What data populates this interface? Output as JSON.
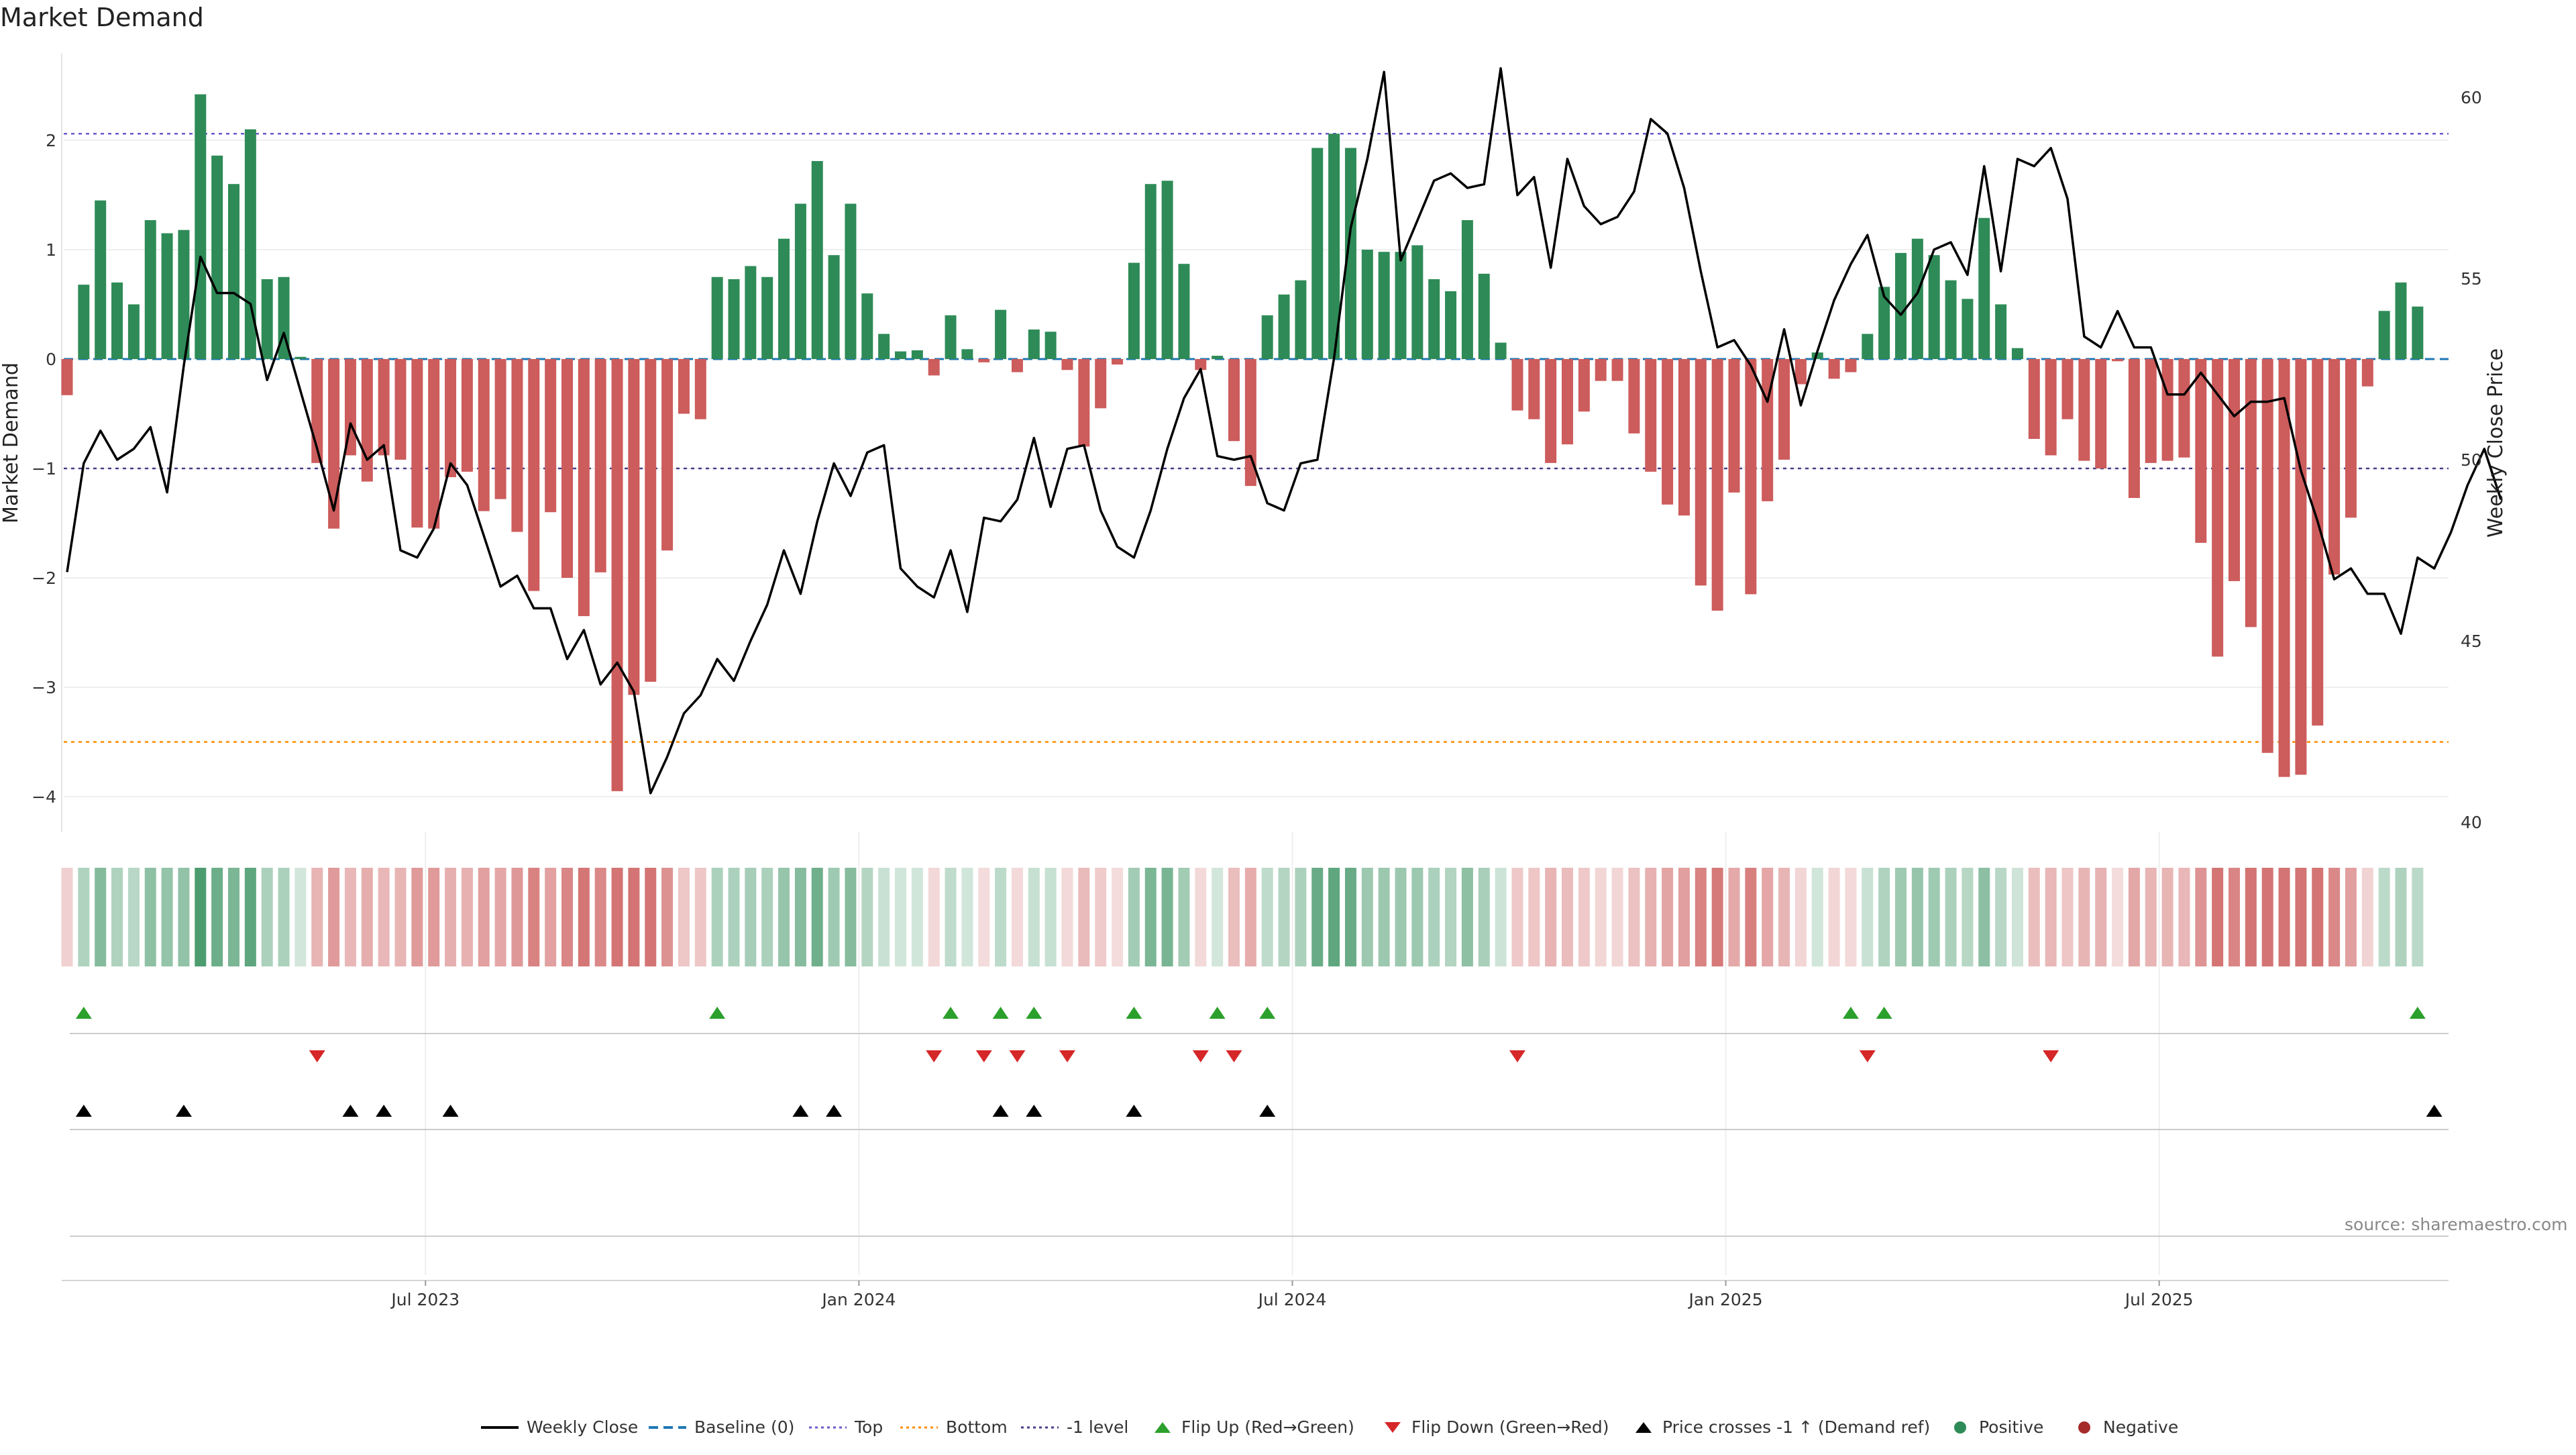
{
  "title": "Market Demand",
  "source": "source: sharemaestro.com",
  "colors": {
    "positive": "#2e8b57",
    "negative": "#cd5c5c",
    "price": "#000000",
    "baseline": "#1f77b4",
    "top": "#6a5acd",
    "bottom": "#ff8c00",
    "minus1": "#483d8b",
    "flip_up": "#2ca02c",
    "flip_down": "#d62728",
    "cross": "#000000"
  },
  "chart_data": {
    "type": "bar",
    "title": "Market Demand",
    "ylabel_left": "Market Demand",
    "ylabel_right": "Weekly Close Price",
    "ylim_left": [
      -4.2,
      2.8
    ],
    "yticks_left": [
      "−4",
      "−3",
      "−2",
      "−1",
      "0",
      "1",
      "2"
    ],
    "ylim_right": [
      39.5,
      61.5
    ],
    "yticks_right": [
      "40",
      "45",
      "50",
      "55",
      "60"
    ],
    "xticks": [
      "Jul 2023",
      "Jan 2024",
      "Jul 2024",
      "Jan 2025",
      "Jul 2025"
    ],
    "xtick_weeks": [
      21.5,
      47.5,
      73.5,
      99.5,
      125.5
    ],
    "levels": {
      "top": 2.06,
      "bottom": -3.5,
      "minus1": -1.0,
      "baseline": 0
    },
    "weeks": 144,
    "demand": [
      -0.33,
      0.68,
      1.45,
      0.7,
      0.5,
      1.27,
      1.15,
      1.18,
      2.42,
      1.86,
      1.6,
      2.1,
      0.73,
      0.75,
      0.02,
      -0.95,
      -1.55,
      -0.88,
      -1.12,
      -0.88,
      -0.92,
      -1.54,
      -1.55,
      -1.08,
      -1.03,
      -1.39,
      -1.28,
      -1.58,
      -2.12,
      -1.4,
      -2.0,
      -2.35,
      -1.95,
      -3.95,
      -3.07,
      -2.95,
      -1.75,
      -0.5,
      -0.55,
      0.75,
      0.73,
      0.85,
      0.75,
      1.1,
      1.42,
      1.81,
      0.95,
      1.42,
      0.6,
      0.23,
      0.07,
      0.08,
      -0.15,
      0.4,
      0.09,
      -0.03,
      0.45,
      -0.12,
      0.27,
      0.25,
      -0.1,
      -0.8,
      -0.45,
      -0.05,
      0.88,
      1.6,
      1.63,
      0.87,
      -0.1,
      0.03,
      -0.75,
      -1.16,
      0.4,
      0.59,
      0.72,
      1.93,
      2.06,
      1.93,
      1.0,
      0.98,
      0.98,
      1.04,
      0.73,
      0.62,
      1.27,
      0.78,
      0.15,
      -0.47,
      -0.55,
      -0.95,
      -0.78,
      -0.48,
      -0.2,
      -0.2,
      -0.68,
      -1.03,
      -1.33,
      -1.43,
      -2.07,
      -2.3,
      -1.22,
      -2.15,
      -1.3,
      -0.92,
      -0.23,
      0.06,
      -0.18,
      -0.12,
      0.23,
      0.66,
      0.97,
      1.1,
      0.95,
      0.72,
      0.55,
      1.29,
      0.5,
      0.1,
      -0.73,
      -0.88,
      -0.55,
      -0.93,
      -1.0,
      -0.02,
      -1.27,
      -0.95,
      -0.93,
      -0.9,
      -1.68,
      -2.72,
      -2.03,
      -2.45,
      -3.6,
      -3.82,
      -3.8,
      -3.35,
      -1.97,
      -1.45,
      -0.25,
      0.44,
      0.7,
      0.48
    ],
    "price": [
      46.9,
      49.9,
      50.8,
      50.0,
      50.3,
      50.9,
      49.1,
      52.6,
      55.6,
      54.6,
      54.6,
      54.3,
      52.2,
      53.5,
      51.9,
      50.3,
      48.6,
      51.0,
      50.0,
      50.4,
      47.5,
      47.3,
      48.1,
      49.9,
      49.3,
      47.9,
      46.5,
      46.8,
      45.9,
      45.9,
      44.5,
      45.3,
      43.8,
      44.4,
      43.6,
      40.8,
      41.8,
      43.0,
      43.5,
      44.5,
      43.9,
      45.0,
      46.0,
      47.5,
      46.3,
      48.3,
      49.9,
      49.0,
      50.2,
      50.4,
      47.0,
      46.5,
      46.2,
      47.5,
      45.8,
      48.4,
      48.3,
      48.9,
      50.6,
      48.7,
      50.3,
      50.4,
      48.6,
      47.6,
      47.3,
      48.6,
      50.3,
      51.7,
      52.5,
      50.1,
      50.0,
      50.1,
      48.8,
      48.6,
      49.9,
      50.0,
      52.8,
      56.4,
      58.3,
      60.7,
      55.5,
      56.6,
      57.7,
      57.9,
      57.5,
      57.6,
      60.8,
      57.3,
      57.8,
      55.3,
      58.3,
      57.0,
      56.5,
      56.7,
      57.4,
      59.4,
      59.0,
      57.5,
      55.2,
      53.1,
      53.3,
      52.6,
      51.6,
      53.6,
      51.5,
      53.0,
      54.4,
      55.4,
      56.2,
      54.5,
      54.0,
      54.6,
      55.8,
      56.0,
      55.1,
      58.1,
      55.2,
      58.3,
      58.1,
      58.6,
      57.2,
      53.4,
      53.1,
      54.1,
      53.1,
      53.1,
      51.8,
      51.8,
      52.4,
      51.8,
      51.2,
      51.6,
      51.6,
      51.7,
      49.7,
      48.3,
      46.7,
      47.0,
      46.3,
      46.3,
      45.2,
      47.3,
      47.0,
      48.0,
      49.3,
      50.3,
      48.9
    ],
    "flip_up_weeks": [
      1,
      39,
      53,
      56,
      58,
      64,
      69,
      72,
      107,
      109,
      141
    ],
    "flip_down_weeks": [
      15,
      52,
      55,
      57,
      60,
      68,
      70,
      87,
      108,
      119
    ],
    "cross_weeks": [
      1,
      7,
      17,
      19,
      23,
      44,
      46,
      56,
      58,
      64,
      72,
      142
    ]
  },
  "legend": [
    {
      "label": "Weekly Close",
      "marker": "line"
    },
    {
      "label": "Baseline (0)",
      "marker": "dashed"
    },
    {
      "label": "Top",
      "marker": "dotted-purple"
    },
    {
      "label": "Bottom",
      "marker": "dotted-orange"
    },
    {
      "label": "-1 level",
      "marker": "dotted-navy"
    },
    {
      "label": "Flip Up (Red→Green)",
      "marker": "tri-up-green"
    },
    {
      "label": "Flip Down (Green→Red)",
      "marker": "tri-down-red"
    },
    {
      "label": "Price crosses -1 ↑ (Demand ref)",
      "marker": "tri-up-black"
    },
    {
      "label": "Positive",
      "marker": "dot-green"
    },
    {
      "label": "Negative",
      "marker": "dot-red"
    }
  ]
}
